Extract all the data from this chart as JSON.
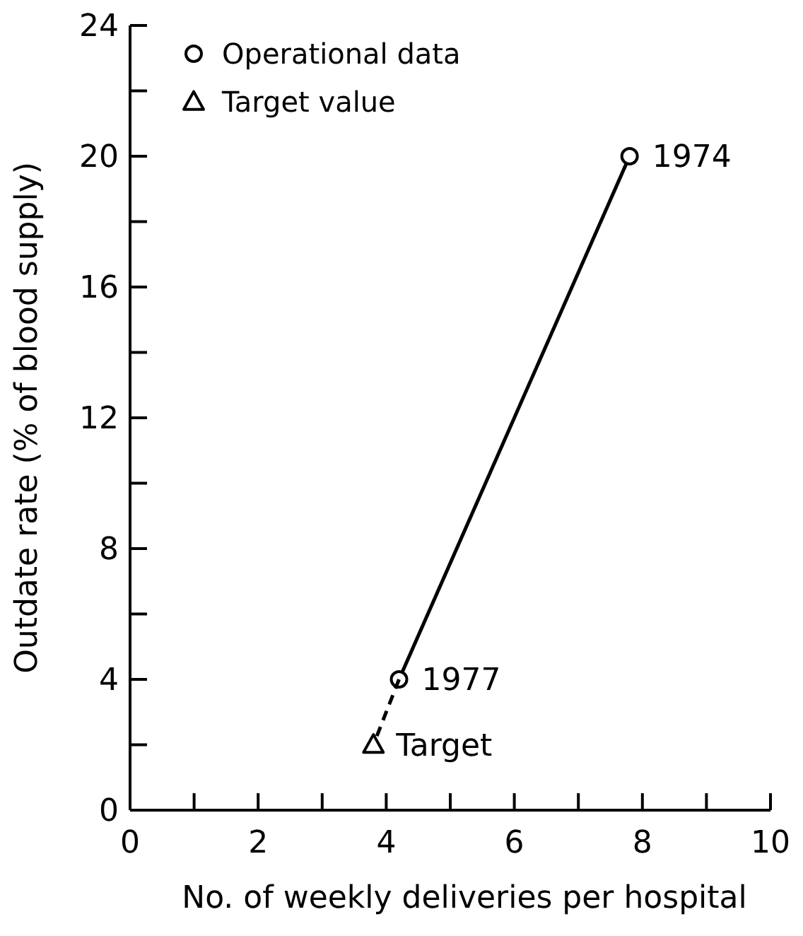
{
  "chart_data": {
    "type": "line",
    "xlabel": "No. of weekly deliveries per hospital",
    "ylabel": "Outdate rate  (% of blood supply)",
    "xlim": [
      0,
      10
    ],
    "ylim": [
      0,
      24
    ],
    "xticks": [
      0,
      {
        "value": 1,
        "label": null
      },
      2,
      {
        "value": 3,
        "label": null
      },
      4,
      {
        "value": 5,
        "label": null
      },
      6,
      {
        "value": 7,
        "label": null
      },
      8,
      {
        "value": 9,
        "label": null
      },
      10
    ],
    "yticks": [
      0,
      {
        "value": 2,
        "label": null
      },
      4,
      {
        "value": 6,
        "label": null
      },
      8,
      {
        "value": 10,
        "label": null
      },
      12,
      {
        "value": 14,
        "label": null
      },
      16,
      {
        "value": 18,
        "label": null
      },
      20,
      {
        "value": 22,
        "label": null
      },
      24
    ],
    "grid": false,
    "legend": "top left",
    "series": [
      {
        "name": "Operational data",
        "color": "#000000",
        "x": [
          4.2,
          7.8
        ],
        "values": [
          4,
          20
        ],
        "marker": "circle",
        "line_style": "solid"
      },
      {
        "color": "#000000",
        "x": [
          4.2,
          3.8
        ],
        "values": [
          4,
          2
        ],
        "marker": "none",
        "line_style": "dashed"
      },
      {
        "name": "Target value",
        "type": "scatter",
        "color": "#000000",
        "x": [
          3.8
        ],
        "values": [
          2
        ],
        "marker": "triangle"
      }
    ],
    "annotations": [
      {
        "text": "1974",
        "x": 7.8,
        "y": 20
      },
      {
        "text": "1977",
        "x": 4.2,
        "y": 4
      },
      {
        "text": "Target",
        "x": 3.8,
        "y": 2
      }
    ]
  }
}
